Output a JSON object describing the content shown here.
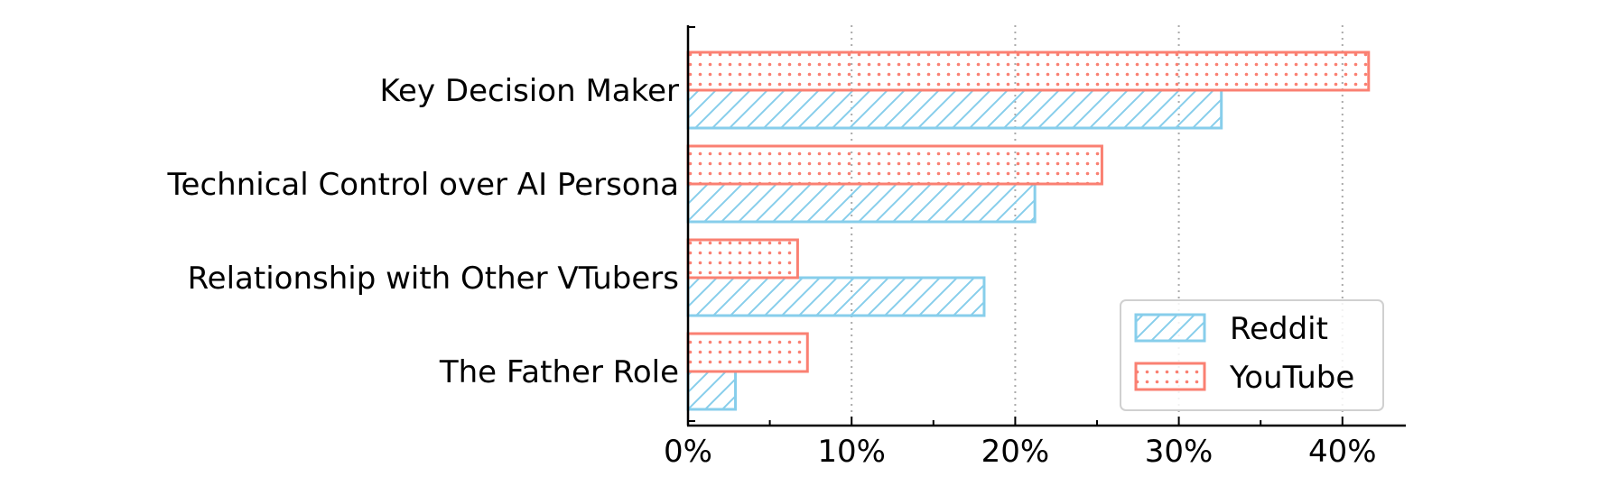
{
  "chart_data": {
    "type": "bar",
    "orientation": "horizontal",
    "categories": [
      "Key Decision Maker",
      "Technical Control over AI Persona",
      "Relationship with Other VTubers",
      "The Father Role"
    ],
    "series": [
      {
        "name": "Reddit",
        "values": [
          32.6,
          21.2,
          18.1,
          2.9
        ],
        "color": "#87CEEB",
        "pattern": "hatch"
      },
      {
        "name": "YouTube",
        "values": [
          41.6,
          25.3,
          6.7,
          7.3
        ],
        "color": "#FA8072",
        "pattern": "dots"
      }
    ],
    "xlim": [
      0,
      43.5
    ],
    "xticks": [
      0,
      10,
      20,
      30,
      40
    ],
    "tick_format": "{v}%",
    "grid": "x-dotted",
    "legend_position": "lower-right"
  }
}
